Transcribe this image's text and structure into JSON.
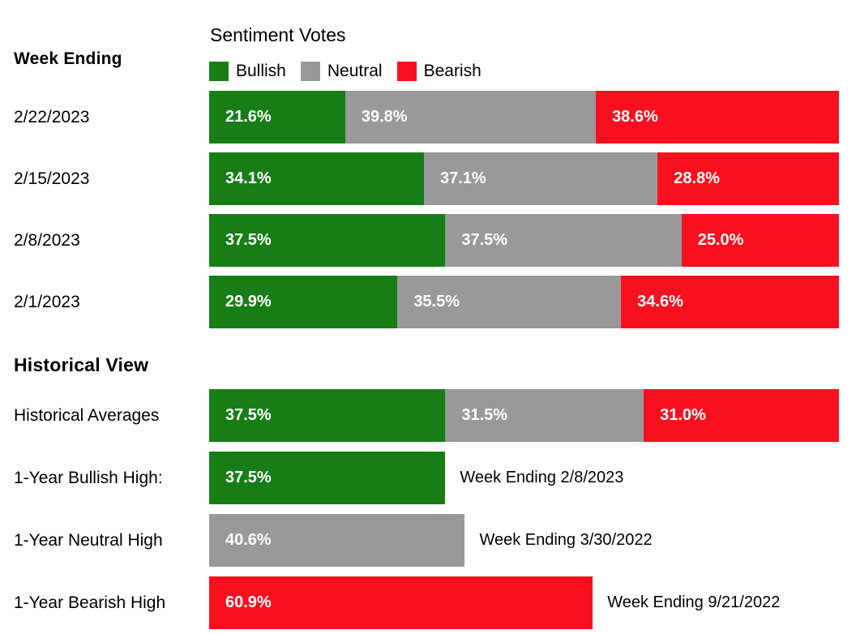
{
  "colors": {
    "bullish": "#177d17",
    "neutral": "#999999",
    "bearish": "#fa0f1e",
    "bar_label": "#ffffff",
    "text": "#000000"
  },
  "header": {
    "week_ending_label": "Week Ending",
    "chart_title": "Sentiment Votes",
    "legend": [
      {
        "label": "Bullish",
        "color": "#177d17"
      },
      {
        "label": "Neutral",
        "color": "#999999"
      },
      {
        "label": "Bearish",
        "color": "#fa0f1e"
      }
    ]
  },
  "weekly_rows": [
    {
      "label": "2/22/2023",
      "segments": [
        {
          "name": "Bullish",
          "value": 21.6,
          "display": "21.6%"
        },
        {
          "name": "Neutral",
          "value": 39.8,
          "display": "39.8%"
        },
        {
          "name": "Bearish",
          "value": 38.6,
          "display": "38.6%"
        }
      ]
    },
    {
      "label": "2/15/2023",
      "segments": [
        {
          "name": "Bullish",
          "value": 34.1,
          "display": "34.1%"
        },
        {
          "name": "Neutral",
          "value": 37.1,
          "display": "37.1%"
        },
        {
          "name": "Bearish",
          "value": 28.8,
          "display": "28.8%"
        }
      ]
    },
    {
      "label": "2/8/2023",
      "segments": [
        {
          "name": "Bullish",
          "value": 37.5,
          "display": "37.5%"
        },
        {
          "name": "Neutral",
          "value": 37.5,
          "display": "37.5%"
        },
        {
          "name": "Bearish",
          "value": 25.0,
          "display": "25.0%"
        }
      ]
    },
    {
      "label": "2/1/2023",
      "segments": [
        {
          "name": "Bullish",
          "value": 29.9,
          "display": "29.9%"
        },
        {
          "name": "Neutral",
          "value": 35.5,
          "display": "35.5%"
        },
        {
          "name": "Bearish",
          "value": 34.6,
          "display": "34.6%"
        }
      ]
    }
  ],
  "historical": {
    "section_title": "Historical View",
    "averages": {
      "label": "Historical Averages",
      "segments": [
        {
          "name": "Bullish",
          "value": 37.5,
          "display": "37.5%"
        },
        {
          "name": "Neutral",
          "value": 31.5,
          "display": "31.5%"
        },
        {
          "name": "Bearish",
          "value": 31.0,
          "display": "31.0%"
        }
      ]
    },
    "high_rows": [
      {
        "label": "1-Year Bullish High:",
        "series": "Bullish",
        "value": 37.5,
        "display": "37.5%",
        "annotation": "Week Ending 2/8/2023"
      },
      {
        "label": "1-Year Neutral High",
        "series": "Neutral",
        "value": 40.6,
        "display": "40.6%",
        "annotation": "Week Ending 3/30/2022"
      },
      {
        "label": "1-Year Bearish High",
        "series": "Bearish",
        "value": 60.9,
        "display": "60.9%",
        "annotation": "Week Ending 9/21/2022"
      }
    ]
  },
  "chart_data": {
    "type": "bar",
    "subtype": "horizontal-stacked",
    "title": "Sentiment Votes",
    "row_axis_label": "Week Ending",
    "unit": "%",
    "legend_position": "top",
    "legend": [
      "Bullish",
      "Neutral",
      "Bearish"
    ],
    "categories": [
      "2/22/2023",
      "2/15/2023",
      "2/8/2023",
      "2/1/2023"
    ],
    "series": [
      {
        "name": "Bullish",
        "color": "#177d17",
        "values": [
          21.6,
          34.1,
          37.5,
          29.9
        ]
      },
      {
        "name": "Neutral",
        "color": "#999999",
        "values": [
          39.8,
          37.1,
          37.5,
          35.5
        ]
      },
      {
        "name": "Bearish",
        "color": "#fa0f1e",
        "values": [
          38.6,
          28.8,
          25.0,
          34.6
        ]
      }
    ],
    "historical_view": {
      "section_title": "Historical View",
      "historical_averages": {
        "Bullish": 37.5,
        "Neutral": 31.5,
        "Bearish": 31.0
      },
      "one_year_bullish_high": {
        "value": 37.5,
        "week_ending": "2/8/2023"
      },
      "one_year_neutral_high": {
        "value": 40.6,
        "week_ending": "3/30/2022"
      },
      "one_year_bearish_high": {
        "value": 60.9,
        "week_ending": "9/21/2022"
      }
    },
    "x_range": [
      0,
      100
    ]
  }
}
